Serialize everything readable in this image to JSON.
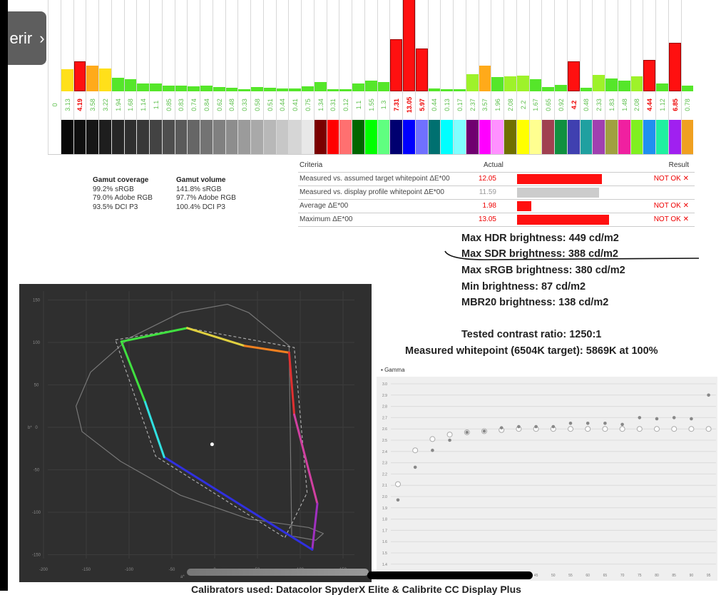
{
  "overlay": {
    "back_label": "erir",
    "chevron_icon": "chevron-right-icon"
  },
  "chart_data": [
    {
      "type": "bar",
      "title": "",
      "values": [
        0,
        3.13,
        4.19,
        3.58,
        3.22,
        1.94,
        1.68,
        1.14,
        1.1,
        0.85,
        0.83,
        0.74,
        0.84,
        0.62,
        0.48,
        0.33,
        0.58,
        0.51,
        0.44,
        0.41,
        0.75,
        1.34,
        0.31,
        0.12,
        1.1,
        1.55,
        1.3,
        7.31,
        13.05,
        5.97,
        0.44,
        0.13,
        0.17,
        2.37,
        3.57,
        1.96,
        2.08,
        2.2,
        1.67,
        0.65,
        0.92,
        4.2,
        0.48,
        2.33,
        1.83,
        1.48,
        2.08,
        4.44,
        1.12,
        6.85,
        0.78
      ],
      "labels": [
        "0",
        "3.13",
        "4.19",
        "3.58",
        "3.22",
        "1.94",
        "1.68",
        "1.14",
        "1.1",
        "0.85",
        "0.83",
        "0.74",
        "0.84",
        "0.62",
        "0.48",
        "0.33",
        "0.58",
        "0.51",
        "0.44",
        "0.41",
        "0.75",
        "1.34",
        "0.31",
        "0.12",
        "1.1",
        "1.55",
        "1.3",
        "7.31",
        "13.05",
        "5.97",
        "0.44",
        "0.13",
        "0.17",
        "2.37",
        "3.57",
        "1.96",
        "2.08",
        "2.2",
        "1.67",
        "0.65",
        "0.92",
        "4.2",
        "0.48",
        "2.33",
        "1.83",
        "1.48",
        "2.08",
        "4.44",
        "1.12",
        "6.85",
        "0.78"
      ],
      "swatches": [
        "#ffffff",
        "#080808",
        "#0f0f0f",
        "#161616",
        "#1e1e1e",
        "#262626",
        "#2f2f2f",
        "#383838",
        "#434343",
        "#4e4e4e",
        "#5a5a5a",
        "#666666",
        "#737373",
        "#808080",
        "#8d8d8d",
        "#9b9b9b",
        "#a9a9a9",
        "#b8b8b8",
        "#c7c7c7",
        "#d6d6d6",
        "#e8e8e8",
        "#7a0000",
        "#ff0000",
        "#ff7070",
        "#006600",
        "#00ff00",
        "#60ff80",
        "#000070",
        "#0000ff",
        "#7070ff",
        "#007070",
        "#00ffff",
        "#80ffff",
        "#700070",
        "#ff00ff",
        "#ff90ff",
        "#707000",
        "#ffff00",
        "#ffff90",
        "#a04050",
        "#109040",
        "#4040b0",
        "#20a0a0",
        "#a040b0",
        "#a0a040",
        "#f020a0",
        "#80f020",
        "#2090f0",
        "#20f0a0",
        "#a020f0",
        "#f0a020"
      ],
      "bar_colors": {
        "good": "#55e62a",
        "ok": "#9ef22a",
        "warn": "#ffe01a",
        "warn2": "#ffaa1a",
        "bad": "#ff1010"
      }
    },
    {
      "type": "scatter",
      "title": "",
      "xlabel": "a*",
      "ylabel": "b*",
      "x_ticks": [
        "-200",
        "-150",
        "-100",
        "-50",
        "0",
        "50",
        "100",
        "150"
      ],
      "y_ticks": [
        "150",
        "100",
        "50",
        "0",
        "-50",
        "-100",
        "-150"
      ],
      "xlim": [
        -200,
        150
      ],
      "ylim": [
        -150,
        150
      ],
      "measured_gamut": [
        [
          -109,
          101
        ],
        [
          -32,
          117
        ],
        [
          35,
          96
        ],
        [
          87,
          88
        ],
        [
          93,
          15
        ],
        [
          120,
          -90
        ],
        [
          114,
          -144
        ],
        [
          -59,
          -35
        ],
        [
          -82,
          32
        ],
        [
          -109,
          101
        ]
      ],
      "measured_colors": [
        "#40e040",
        "#e0d040",
        "#f08020",
        "#e03030",
        "#d040a0",
        "#a030c0",
        "#3030e0",
        "#30e0e0",
        "#40e040"
      ],
      "reference_gamut": [
        [
          -116,
          103
        ],
        [
          -32,
          117
        ],
        [
          93,
          94
        ],
        [
          108,
          -77
        ],
        [
          82,
          -130
        ],
        [
          -69,
          -34
        ],
        [
          -116,
          103
        ]
      ],
      "locus": [
        [
          87,
          96
        ],
        [
          40,
          135
        ],
        [
          15,
          145
        ],
        [
          -40,
          135
        ],
        [
          -100,
          105
        ],
        [
          -145,
          65
        ],
        [
          -162,
          25
        ],
        [
          -155,
          -5
        ],
        [
          -110,
          -40
        ],
        [
          -40,
          -80
        ],
        [
          40,
          -108
        ],
        [
          110,
          -118
        ],
        [
          127,
          -125
        ],
        [
          118,
          -133
        ],
        [
          90,
          -128
        ]
      ],
      "whitepoint": [
        -3,
        -20
      ]
    },
    {
      "type": "scatter",
      "title": "Gamma",
      "x": [
        5,
        10,
        15,
        20,
        25,
        30,
        35,
        40,
        45,
        50,
        55,
        60,
        65,
        70,
        75,
        80,
        85,
        90,
        95
      ],
      "x_tick_labels": [
        "45",
        "50",
        "55",
        "60",
        "65",
        "70",
        "75",
        "80",
        "85",
        "90",
        "95"
      ],
      "y_ticks": [
        "3.0",
        "2.9",
        "2.8",
        "2.7",
        "2.6",
        "2.5",
        "2.4",
        "2.3",
        "2.2",
        "2.1",
        "2.0",
        "1.9",
        "1.8",
        "1.7",
        "1.6",
        "1.5",
        "1.4"
      ],
      "ylim": [
        1.4,
        3.0
      ],
      "series": [
        {
          "marker": "filled",
          "values": [
            1.97,
            2.26,
            2.41,
            2.5,
            2.57,
            2.58,
            2.61,
            2.62,
            2.62,
            2.62,
            2.65,
            2.65,
            2.65,
            2.64,
            2.7,
            2.69,
            2.7,
            2.69,
            2.9
          ]
        },
        {
          "marker": "hollow",
          "values": [
            2.11,
            2.41,
            2.51,
            2.55,
            2.57,
            2.58,
            2.59,
            2.6,
            2.6,
            2.6,
            2.6,
            2.6,
            2.6,
            2.6,
            2.6,
            2.6,
            2.6,
            2.6,
            2.6
          ]
        }
      ]
    }
  ],
  "gamut": {
    "coverage_title": "Gamut coverage",
    "coverage": [
      "99.2% sRGB",
      "79.0% Adobe RGB",
      "93.5% DCI P3"
    ],
    "volume_title": "Gamut volume",
    "volume": [
      "141.8% sRGB",
      "97.7% Adobe RGB",
      "100.4% DCI P3"
    ]
  },
  "criteria": {
    "headers": {
      "criteria": "Criteria",
      "actual": "Actual",
      "result": "Result"
    },
    "rows": [
      {
        "label": "Measured vs. assumed target whitepoint ΔE*00",
        "actual": "12.05",
        "value": 12.05,
        "result": "NOT OK ✕",
        "color": "#ff1010"
      },
      {
        "label": "Measured vs. display profile whitepoint ΔE*00",
        "actual": "11.59",
        "value": 11.59,
        "result": "",
        "color": "#cccccc"
      },
      {
        "label": "Average ΔE*00",
        "actual": "1.98",
        "value": 1.98,
        "result": "NOT OK ✕",
        "color": "#ff1010"
      },
      {
        "label": "Maximum ΔE*00",
        "actual": "13.05",
        "value": 13.05,
        "result": "NOT OK ✕",
        "color": "#ff1010"
      }
    ]
  },
  "stats": {
    "hdr": "Max HDR brightness: 449 cd/m2",
    "sdr": "Max SDR brightness: 388 cd/m2",
    "srgb": "Max sRGB brightness: 380 cd/m2",
    "min": "Min brightness: 87 cd/m2",
    "mbr20": "MBR20 brightness: 138 cd/m2",
    "contrast": "Tested contrast ratio: 1250:1",
    "whitepoint": "Measured whitepoint (6504K target): 5869K at 100%"
  },
  "caption": "Calibrators used: Datacolor SpyderX Elite & Calibrite CC Display Plus"
}
